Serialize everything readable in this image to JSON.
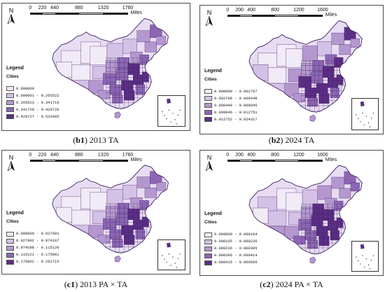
{
  "scale_bar": {
    "top": {
      "ticks": [
        "0",
        "220",
        "440",
        "880",
        "1320",
        "1760"
      ],
      "unit": "Miles"
    },
    "bottom": {
      "ticks": [
        "0",
        "200",
        "400",
        "800",
        "1200",
        "1600"
      ],
      "unit": "Miles"
    }
  },
  "north_label": "N",
  "legend": {
    "title": "Legend",
    "subtitle": "Cities"
  },
  "panels": [
    {
      "id": "b1",
      "label": "b1",
      "caption": " 2013 TA",
      "classes": [
        {
          "label": "0.000000",
          "color": "#f1eaf7"
        },
        {
          "label": "0.000001 - 0.265522",
          "color": "#d4c1e6"
        },
        {
          "label": "0.265523 - 0.341719",
          "color": "#b497cf"
        },
        {
          "label": "0.341720 - 0.429726",
          "color": "#8c66b3"
        },
        {
          "label": "0.429727 - 0.533405",
          "color": "#5b2e86"
        }
      ]
    },
    {
      "id": "b2",
      "label": "b2",
      "caption": " 2024 TA",
      "classes": [
        {
          "label": "0.000000 - 0.002707",
          "color": "#f1eaf7"
        },
        {
          "label": "0.002708 - 0.006448",
          "color": "#d4c1e6"
        },
        {
          "label": "0.006449 - 0.009045",
          "color": "#b497cf"
        },
        {
          "label": "0.009046 - 0.012751",
          "color": "#8c66b3"
        },
        {
          "label": "0.012752 - 0.024317",
          "color": "#5b2e86"
        }
      ]
    },
    {
      "id": "c1",
      "label": "c1",
      "caption": " 2013 PA × TA",
      "classes": [
        {
          "label": "0.000000 - 0.027901",
          "color": "#f1eaf7"
        },
        {
          "label": "0.027902 - 0.074187",
          "color": "#d4c1e6"
        },
        {
          "label": "0.074188 - 0.115120",
          "color": "#b497cf"
        },
        {
          "label": "0.115121 - 0.175801",
          "color": "#8c66b3"
        },
        {
          "label": "0.175802 - 0.262715",
          "color": "#5b2e86"
        }
      ]
    },
    {
      "id": "c2",
      "label": "c2",
      "caption": " 2024 PA × TA",
      "classes": [
        {
          "label": "0.000000 - 0.000104",
          "color": "#f1eaf7"
        },
        {
          "label": "0.000105 - 0.000235",
          "color": "#d4c1e6"
        },
        {
          "label": "0.000236 - 0.000305",
          "color": "#b497cf"
        },
        {
          "label": "0.000306 - 0.000414",
          "color": "#8c66b3"
        },
        {
          "label": "0.000415 - 0.000569",
          "color": "#5b2e86"
        }
      ]
    }
  ]
}
